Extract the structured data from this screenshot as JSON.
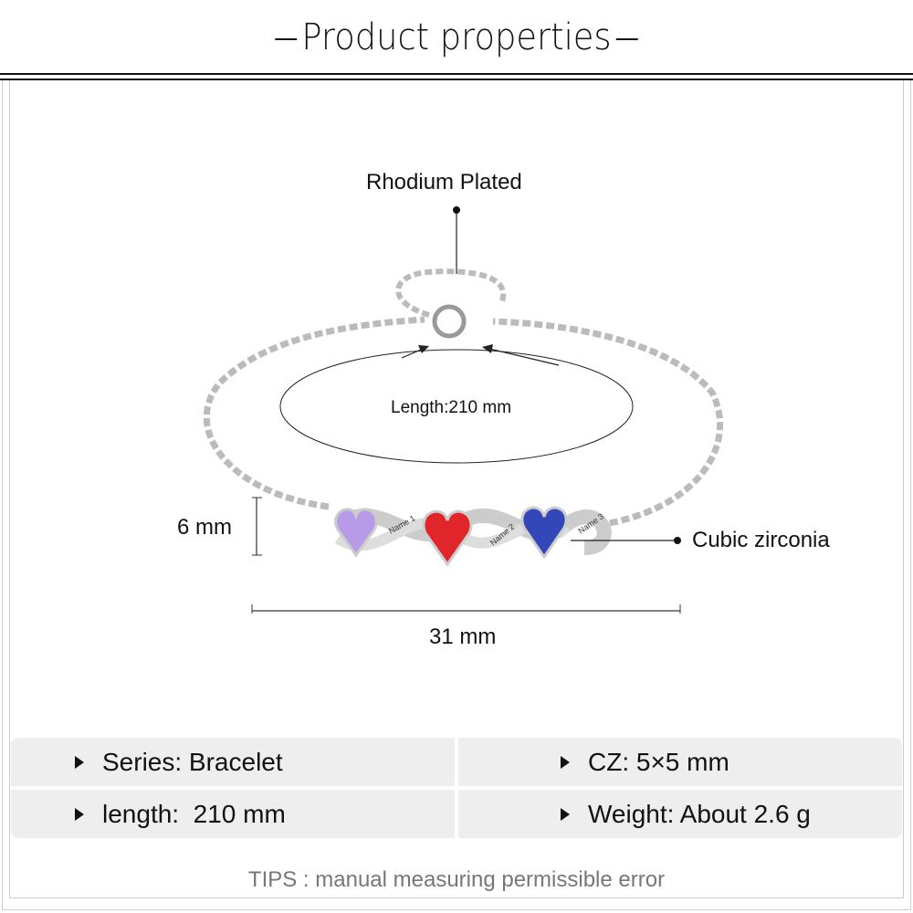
{
  "header": {
    "title": "Product properties"
  },
  "diagram": {
    "rhodium_label": "Rhodium Plated",
    "length_label": "Length:210 mm",
    "height_label": "6 mm",
    "width_label": "31 mm",
    "stone_label": "Cubic zirconia",
    "engravings": [
      "Name 1",
      "Name 2",
      "Name 3"
    ],
    "stone_colors": [
      "#b79be8",
      "#e0262a",
      "#3347b8"
    ]
  },
  "specs": [
    {
      "label": "Series: Bracelet"
    },
    {
      "label": "CZ: 5×5 mm"
    },
    {
      "label": "length:  210 mm"
    },
    {
      "label": "Weight: About 2.6 g"
    }
  ],
  "tips": "TIPS : manual measuring permissible error"
}
